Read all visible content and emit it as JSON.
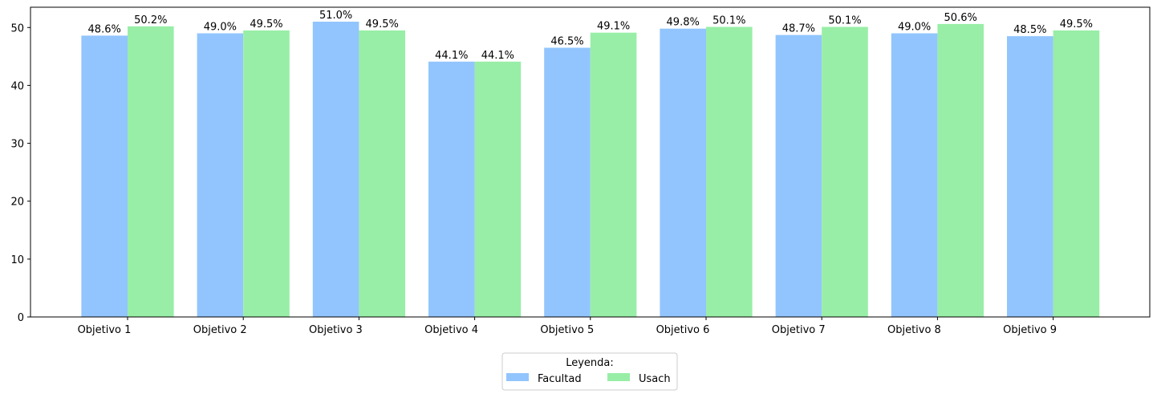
{
  "chart_data": {
    "type": "bar",
    "title": "",
    "xlabel": "",
    "ylabel": "",
    "ylim": [
      0,
      53.5
    ],
    "yticks": [
      0,
      10,
      20,
      30,
      40,
      50
    ],
    "grid": false,
    "categories": [
      "Objetivo 1",
      "Objetivo 2",
      "Objetivo 3",
      "Objetivo 4",
      "Objetivo 5",
      "Objetivo 6",
      "Objetivo 7",
      "Objetivo 8",
      "Objetivo 9"
    ],
    "series": [
      {
        "name": "Facultad",
        "color": "#92c5fd",
        "values": [
          48.6,
          49.0,
          51.0,
          44.1,
          46.5,
          49.8,
          48.7,
          49.0,
          48.5
        ],
        "labels": [
          "48.6%",
          "49.0%",
          "51.0%",
          "44.1%",
          "46.5%",
          "49.8%",
          "48.7%",
          "49.0%",
          "48.5%"
        ]
      },
      {
        "name": "Usach",
        "color": "#98eea6",
        "values": [
          50.2,
          49.5,
          49.5,
          44.1,
          49.1,
          50.1,
          50.1,
          50.6,
          49.5
        ],
        "labels": [
          "50.2%",
          "49.5%",
          "49.5%",
          "44.1%",
          "49.1%",
          "50.1%",
          "50.1%",
          "50.6%",
          "49.5%"
        ]
      }
    ],
    "legend": {
      "title": "Leyenda:",
      "placement": "bottom-center",
      "columns": 2
    }
  }
}
